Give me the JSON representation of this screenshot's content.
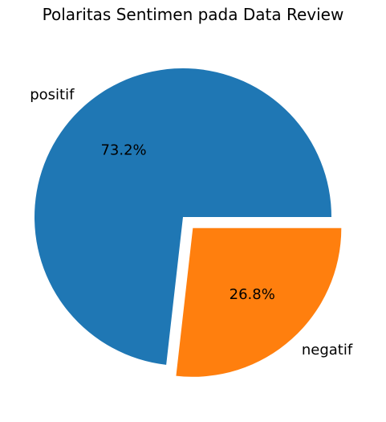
{
  "chart_data": {
    "type": "pie",
    "title": "Polaritas Sentimen pada Data Review",
    "slices": [
      {
        "label": "positif",
        "value": 73.2,
        "pct_label": "73.2%",
        "color": "#1f77b4",
        "exploded": false
      },
      {
        "label": "negatif",
        "value": 26.8,
        "pct_label": "26.8%",
        "color": "#ff7f0e",
        "exploded": true
      }
    ],
    "start_angle_deg": 0,
    "direction": "counterclockwise",
    "legend": "none"
  }
}
